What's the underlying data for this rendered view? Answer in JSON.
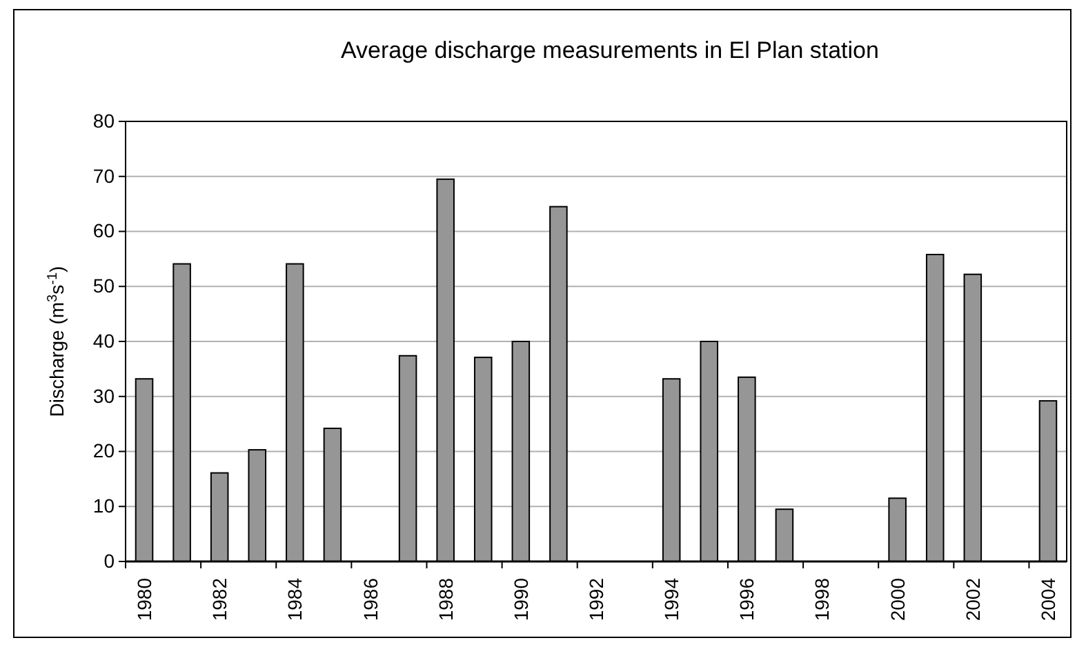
{
  "chart_data": {
    "type": "bar",
    "title": "Average discharge measurements in El Plan station",
    "ylabel": "Discharge (m$^{3}$s$^{-1}$)",
    "categories": [
      "1980",
      null,
      "1982",
      null,
      "1984",
      null,
      "1986",
      null,
      "1988",
      null,
      "1990",
      null,
      "1992",
      null,
      "1994",
      null,
      "1996",
      null,
      "1998",
      null,
      "2000",
      null,
      "2002",
      null,
      "2004"
    ],
    "values": [
      33.2,
      54.1,
      16.1,
      20.3,
      54.1,
      24.2,
      null,
      37.4,
      69.5,
      37.1,
      40,
      64.5,
      null,
      null,
      33.2,
      40,
      33.5,
      9.5,
      null,
      null,
      11.5,
      55.8,
      52.2,
      null,
      29.2
    ],
    "color": "#969696",
    "ylim": [
      0,
      80
    ],
    "yticks": [
      0,
      10,
      20,
      30,
      40,
      50,
      60,
      70,
      80
    ],
    "grid": "y"
  }
}
